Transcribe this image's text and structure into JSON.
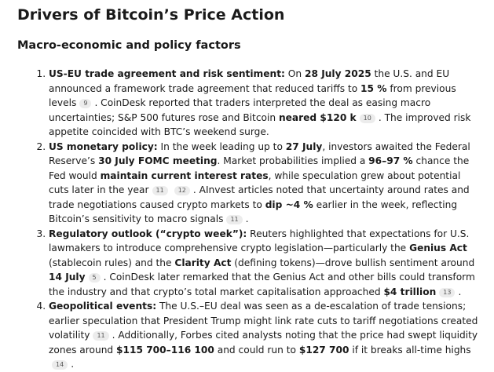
{
  "title": "Drivers of Bitcoin’s Price Action",
  "section_heading": "Macro-economic and policy factors",
  "items": [
    {
      "lead": "US-EU trade agreement and risk sentiment:",
      "t1": " On ",
      "b1": "28 July 2025",
      "t2": " the U.S. and EU announced a framework trade agreement that reduced tariffs to ",
      "b2": "15 %",
      "t3": " from previous levels",
      "c1": "9",
      "t4": ". CoinDesk reported that traders interpreted the deal as easing macro uncertainties; S&P 500 futures rose and Bitcoin ",
      "b3": "neared $120 k",
      "c2": "10",
      "t5": ". The improved risk appetite coincided with BTC’s weekend surge."
    },
    {
      "lead": "US monetary policy:",
      "t1": " In the week leading up to ",
      "b1": "27 July",
      "t2": ", investors awaited the Federal Reserve’s ",
      "b2": "30 July FOMC meeting",
      "t3": ". Market probabilities implied a ",
      "b3": "96–97 %",
      "t4": " chance the Fed would ",
      "b4": "maintain current interest rates",
      "t5": ", while speculation grew about potential cuts later in the year",
      "c1": "11",
      "c2": "12",
      "t6": ". AInvest articles noted that uncertainty around rates and trade negotiations caused crypto markets to ",
      "b5": "dip ~4 %",
      "t7": " earlier in the week, reflecting Bitcoin’s sensitivity to macro signals",
      "c3": "11",
      "t8": "."
    },
    {
      "lead": "Regulatory outlook (“crypto week”):",
      "t1": " Reuters highlighted that expectations for U.S. lawmakers to introduce comprehensive crypto legislation—particularly the ",
      "b1": "Genius Act",
      "t2": " (stablecoin rules) and the ",
      "b2": "Clarity Act",
      "t3": " (defining tokens)—drove bullish sentiment around ",
      "b3": "14 July",
      "c1": "5",
      "t4": ". CoinDesk later remarked that the Genius Act and other bills could transform the industry and that crypto’s total market capitalisation approached ",
      "b4": "$4 trillion",
      "c2": "13",
      "t5": "."
    },
    {
      "lead": "Geopolitical events:",
      "t1": " The U.S.–EU deal was seen as a de-escalation of trade tensions; earlier speculation that President Trump might link rate cuts to tariff negotiations created volatility",
      "c1": "11",
      "t2": ". Additionally, Forbes cited analysts noting that the price had swept liquidity zones around ",
      "b1": "$115 700–116 100",
      "t3": " and could run to ",
      "b2": "$127 700",
      "t4": " if it breaks all-time highs",
      "c2": "14",
      "t5": "."
    }
  ]
}
